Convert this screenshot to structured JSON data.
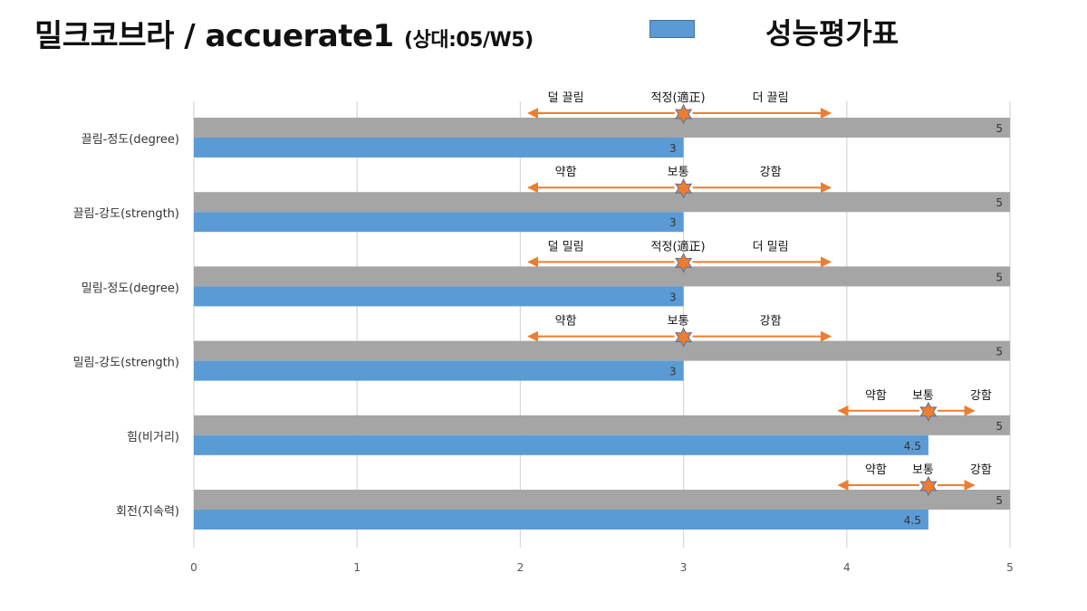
{
  "header": {
    "title": "밀크코브라 / accuerate1",
    "subtitle": "(상대:05/W5)"
  },
  "legend": {
    "label": "성능평가표",
    "color": "#5b9bd5"
  },
  "colors": {
    "bar": "#5b9bd5",
    "reference_bar": "#a5a5a5",
    "arrow": "#ed7d31",
    "marker": "#ed7d31",
    "grid": "#d9d9d9"
  },
  "chart_data": {
    "type": "bar",
    "orientation": "horizontal",
    "xlim": [
      0,
      5
    ],
    "x_ticks": [
      "0",
      "1",
      "2",
      "3",
      "4",
      "5"
    ],
    "grid": true,
    "categories": [
      "끌림-정도(degree)",
      "끌림-강도(strength)",
      "밀림-정도(degree)",
      "밀림-강도(strength)",
      "힘(비거리)",
      "회전(지속력)"
    ],
    "series": [
      {
        "values": [
          5,
          5,
          5,
          5,
          5,
          5
        ],
        "labels": [
          "5",
          "5",
          "5",
          "5",
          "5",
          "5"
        ]
      },
      {
        "values": [
          3,
          3,
          3,
          3,
          4.5,
          4.5
        ],
        "labels": [
          "3",
          "3",
          "3",
          "3",
          "4.5",
          "4.5"
        ]
      }
    ],
    "annotations": [
      {
        "center": 3,
        "from": 2.05,
        "to": 3.9,
        "left": "덜 끌림",
        "mid": "적정(適正)",
        "right": "더 끌림"
      },
      {
        "center": 3,
        "from": 2.05,
        "to": 3.9,
        "left": "약함",
        "mid": "보통",
        "right": "강함"
      },
      {
        "center": 3,
        "from": 2.05,
        "to": 3.9,
        "left": "덜 밀림",
        "mid": "적정(適正)",
        "right": "더 밀림"
      },
      {
        "center": 3,
        "from": 2.05,
        "to": 3.9,
        "left": "약함",
        "mid": "보통",
        "right": "강함"
      },
      {
        "center": 4.5,
        "from": 3.95,
        "to": 4.78,
        "left": "약함",
        "mid": "보통",
        "right": "강함"
      },
      {
        "center": 4.5,
        "from": 3.95,
        "to": 4.78,
        "left": "약함",
        "mid": "보통",
        "right": "강함"
      }
    ]
  }
}
